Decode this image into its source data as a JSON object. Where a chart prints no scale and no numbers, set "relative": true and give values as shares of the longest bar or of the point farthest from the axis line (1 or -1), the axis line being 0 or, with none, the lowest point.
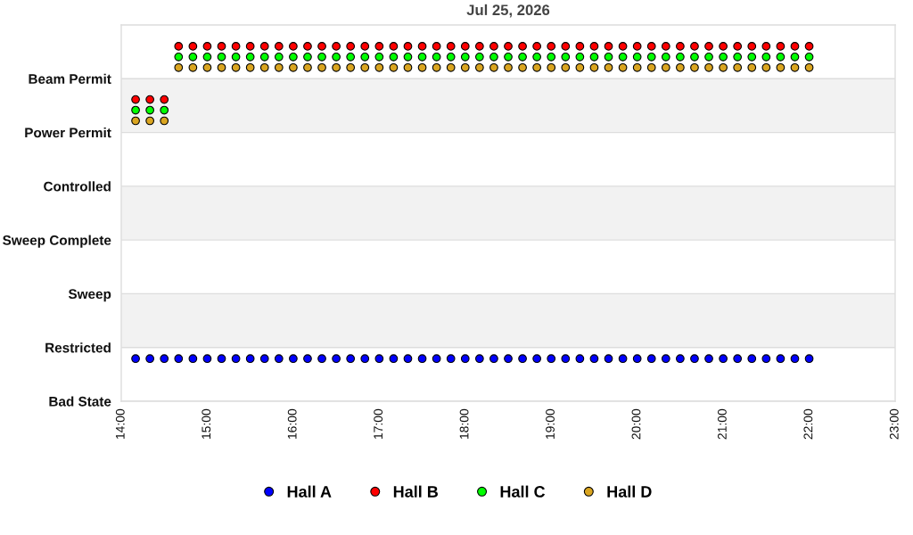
{
  "chart_data": {
    "type": "scatter",
    "title": "Jul 25, 2026",
    "relative": true,
    "x": [
      "2026-07-25T14:10",
      "2026-07-25T14:20",
      "2026-07-25T14:30",
      "2026-07-25T14:40",
      "2026-07-25T14:50",
      "2026-07-25T15:00",
      "2026-07-25T15:10",
      "2026-07-25T15:20",
      "2026-07-25T15:30",
      "2026-07-25T15:40",
      "2026-07-25T15:50",
      "2026-07-25T16:00",
      "2026-07-25T16:10",
      "2026-07-25T16:20",
      "2026-07-25T16:30",
      "2026-07-25T16:40",
      "2026-07-25T16:50",
      "2026-07-25T17:00",
      "2026-07-25T17:10",
      "2026-07-25T17:20",
      "2026-07-25T17:30",
      "2026-07-25T17:40",
      "2026-07-25T17:50",
      "2026-07-25T18:00",
      "2026-07-25T18:10",
      "2026-07-25T18:20",
      "2026-07-25T18:30",
      "2026-07-25T18:40",
      "2026-07-25T18:50",
      "2026-07-25T19:00",
      "2026-07-25T19:10",
      "2026-07-25T19:20",
      "2026-07-25T19:30",
      "2026-07-25T19:40",
      "2026-07-25T19:50",
      "2026-07-25T20:00",
      "2026-07-25T20:10",
      "2026-07-25T20:20",
      "2026-07-25T20:30",
      "2026-07-25T20:40",
      "2026-07-25T20:50",
      "2026-07-25T21:00",
      "2026-07-25T21:10",
      "2026-07-25T21:20",
      "2026-07-25T21:30",
      "2026-07-25T21:40",
      "2026-07-25T21:50",
      "2026-07-25T22:00"
    ],
    "y_categories": [
      "Beam Permit",
      "Power Permit",
      "Controlled",
      "Sweep Complete",
      "Sweep",
      "Restricted",
      "Bad State"
    ],
    "series": [
      {
        "name": "Hall A",
        "color": "#0000ff",
        "values": [
          0.12,
          0.12,
          0.12,
          0.12,
          0.12,
          0.12,
          0.12,
          0.12,
          0.12,
          0.12,
          0.12,
          0.12,
          0.12,
          0.12,
          0.12,
          0.12,
          0.12,
          0.12,
          0.12,
          0.12,
          0.12,
          0.12,
          0.12,
          0.12,
          0.12,
          0.12,
          0.12,
          0.12,
          0.12,
          0.12,
          0.12,
          0.12,
          0.12,
          0.12,
          0.12,
          0.12,
          0.12,
          0.12,
          0.12,
          0.12,
          0.12,
          0.12,
          0.12,
          0.12,
          0.12,
          0.12,
          0.12,
          0.12
        ]
      },
      {
        "name": "Hall B",
        "color": "#ff0000",
        "values": [
          0.85,
          0.85,
          0.85,
          1,
          1,
          1,
          1,
          1,
          1,
          1,
          1,
          1,
          1,
          1,
          1,
          1,
          1,
          1,
          1,
          1,
          1,
          1,
          1,
          1,
          1,
          1,
          1,
          1,
          1,
          1,
          1,
          1,
          1,
          1,
          1,
          1,
          1,
          1,
          1,
          1,
          1,
          1,
          1,
          1,
          1,
          1,
          1,
          1
        ]
      },
      {
        "name": "Hall C",
        "color": "#00ff00",
        "values": [
          0.82,
          0.82,
          0.82,
          0.97,
          0.97,
          0.97,
          0.97,
          0.97,
          0.97,
          0.97,
          0.97,
          0.97,
          0.97,
          0.97,
          0.97,
          0.97,
          0.97,
          0.97,
          0.97,
          0.97,
          0.97,
          0.97,
          0.97,
          0.97,
          0.97,
          0.97,
          0.97,
          0.97,
          0.97,
          0.97,
          0.97,
          0.97,
          0.97,
          0.97,
          0.97,
          0.97,
          0.97,
          0.97,
          0.97,
          0.97,
          0.97,
          0.97,
          0.97,
          0.97,
          0.97,
          0.97,
          0.97,
          0.97
        ]
      },
      {
        "name": "Hall D",
        "color": "#daa520",
        "values": [
          0.79,
          0.79,
          0.79,
          0.94,
          0.94,
          0.94,
          0.94,
          0.94,
          0.94,
          0.94,
          0.94,
          0.94,
          0.94,
          0.94,
          0.94,
          0.94,
          0.94,
          0.94,
          0.94,
          0.94,
          0.94,
          0.94,
          0.94,
          0.94,
          0.94,
          0.94,
          0.94,
          0.94,
          0.94,
          0.94,
          0.94,
          0.94,
          0.94,
          0.94,
          0.94,
          0.94,
          0.94,
          0.94,
          0.94,
          0.94,
          0.94,
          0.94,
          0.94,
          0.94,
          0.94,
          0.94,
          0.94,
          0.94
        ]
      }
    ],
    "xlim": [
      "2026-07-25T14:00",
      "2026-07-25T23:00"
    ],
    "xticks": [
      {
        "value": "2026-07-25T14:00",
        "label": "14:00"
      },
      {
        "value": "2026-07-25T15:00",
        "label": "15:00"
      },
      {
        "value": "2026-07-25T16:00",
        "label": "16:00"
      },
      {
        "value": "2026-07-25T17:00",
        "label": "17:00"
      },
      {
        "value": "2026-07-25T18:00",
        "label": "18:00"
      },
      {
        "value": "2026-07-25T19:00",
        "label": "19:00"
      },
      {
        "value": "2026-07-25T20:00",
        "label": "20:00"
      },
      {
        "value": "2026-07-25T21:00",
        "label": "21:00"
      },
      {
        "value": "2026-07-25T22:00",
        "label": "22:00"
      },
      {
        "value": "2026-07-25T23:00",
        "label": "23:00"
      }
    ],
    "bands": [
      {
        "axis": "y",
        "from": 0.152,
        "to": 0.303,
        "color": "#f2f2f2"
      },
      {
        "axis": "y",
        "from": 0.455,
        "to": 0.606,
        "color": "#f2f2f2"
      },
      {
        "axis": "y",
        "from": 0.758,
        "to": 0.909,
        "color": "#f2f2f2"
      }
    ],
    "grid": "y",
    "legend": "bottom",
    "marker": "circle"
  }
}
